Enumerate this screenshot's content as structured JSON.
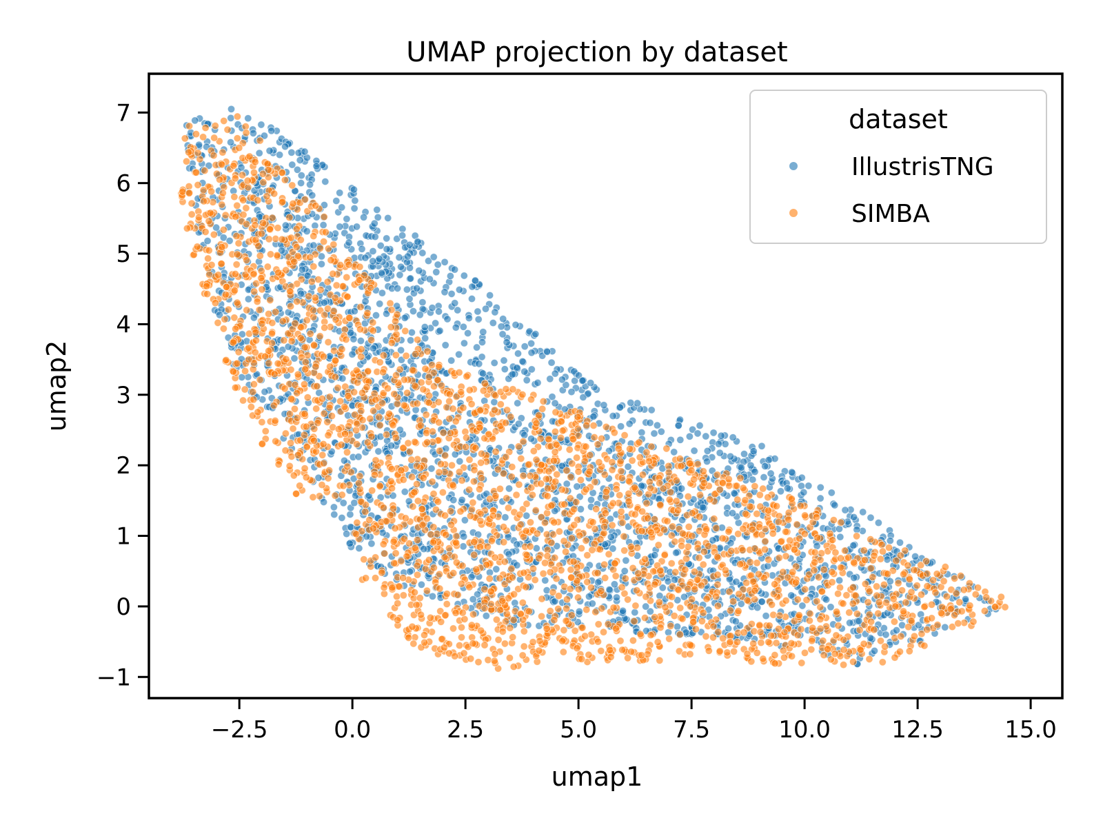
{
  "chart_data": {
    "type": "scatter",
    "title": "UMAP projection by dataset",
    "xlabel": "umap1",
    "ylabel": "umap2",
    "xlim": [
      -4.5,
      15.7
    ],
    "ylim": [
      -1.3,
      7.55
    ],
    "xticks": [
      -2.5,
      0.0,
      2.5,
      5.0,
      7.5,
      10.0,
      12.5,
      15.0
    ],
    "xtick_labels": [
      "−2.5",
      "0.0",
      "2.5",
      "5.0",
      "7.5",
      "10.0",
      "12.5",
      "15.0"
    ],
    "yticks": [
      -1,
      0,
      1,
      2,
      3,
      4,
      5,
      6,
      7
    ],
    "ytick_labels": [
      "−1",
      "0",
      "1",
      "2",
      "3",
      "4",
      "5",
      "6",
      "7"
    ],
    "grid": false,
    "legend": {
      "title": "dataset",
      "placement": "top-right"
    },
    "series": [
      {
        "name": "IllustrisTNG",
        "color": "#1f77b4",
        "approx_points": 2600,
        "region_outline": [
          [
            -3.7,
            6.9
          ],
          [
            -2.5,
            7.15
          ],
          [
            -1.5,
            6.7
          ],
          [
            0.5,
            5.7
          ],
          [
            1.5,
            5.2
          ],
          [
            3.0,
            4.5
          ],
          [
            5.0,
            3.3
          ],
          [
            7.0,
            2.7
          ],
          [
            9.0,
            2.3
          ],
          [
            10.5,
            1.7
          ],
          [
            12.5,
            0.8
          ],
          [
            14.6,
            0.0
          ],
          [
            13.0,
            -0.4
          ],
          [
            11.3,
            -0.85
          ],
          [
            9.0,
            -0.5
          ],
          [
            6.0,
            -0.35
          ],
          [
            3.5,
            -0.3
          ],
          [
            0.3,
            0.5
          ],
          [
            -0.8,
            1.6
          ],
          [
            -1.8,
            2.6
          ],
          [
            -2.8,
            3.6
          ],
          [
            -3.4,
            5.0
          ],
          [
            -3.7,
            6.0
          ]
        ]
      },
      {
        "name": "SIMBA",
        "color": "#ff7f0e",
        "approx_points": 2600,
        "region_outline": [
          [
            -3.8,
            6.8
          ],
          [
            -2.4,
            7.05
          ],
          [
            -1.8,
            6.3
          ],
          [
            -0.5,
            5.5
          ],
          [
            0.5,
            4.6
          ],
          [
            2.0,
            3.4
          ],
          [
            4.0,
            3.0
          ],
          [
            6.5,
            2.4
          ],
          [
            9.5,
            1.6
          ],
          [
            11.5,
            1.0
          ],
          [
            13.5,
            0.5
          ],
          [
            14.7,
            0.0
          ],
          [
            12.5,
            -0.6
          ],
          [
            11.3,
            -0.9
          ],
          [
            8.0,
            -0.75
          ],
          [
            5.0,
            -0.8
          ],
          [
            3.3,
            -0.9
          ],
          [
            1.5,
            -0.65
          ],
          [
            0.0,
            0.5
          ],
          [
            0.0,
            1.4
          ],
          [
            -1.3,
            1.6
          ],
          [
            -2.5,
            2.8
          ],
          [
            -3.3,
            4.2
          ],
          [
            -3.8,
            5.8
          ]
        ]
      }
    ]
  }
}
